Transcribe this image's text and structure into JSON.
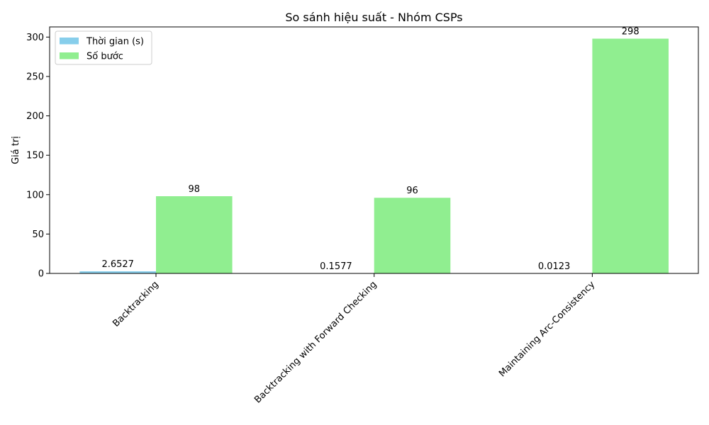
{
  "chart_data": {
    "type": "bar",
    "title": "So sánh hiệu suất - Nhóm CSPs",
    "xlabel": "",
    "ylabel": "Giá trị",
    "categories": [
      "Backtracking",
      "Backtracking with Forward Checking",
      "Maintaining Arc-Consistency"
    ],
    "series": [
      {
        "name": "Thời gian (s)",
        "values": [
          2.6527,
          0.1577,
          0.0123
        ],
        "labels": [
          "2.6527",
          "0.1577",
          "0.0123"
        ],
        "color": "#87ceeb"
      },
      {
        "name": "Số bước",
        "values": [
          98,
          96,
          298
        ],
        "labels": [
          "98",
          "96",
          "298"
        ],
        "color": "#90ee90"
      }
    ],
    "ylim": [
      0,
      312.9
    ],
    "yticks": [
      0,
      50,
      100,
      150,
      200,
      250,
      300
    ],
    "grid": false,
    "legend_position": "top-left"
  }
}
